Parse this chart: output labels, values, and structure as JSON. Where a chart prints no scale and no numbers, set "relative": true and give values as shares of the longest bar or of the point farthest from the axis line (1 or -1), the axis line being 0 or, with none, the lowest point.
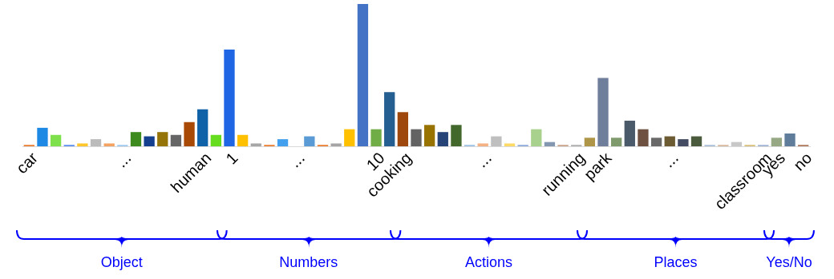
{
  "chart_data": {
    "type": "bar",
    "relative": true,
    "categories": [
      "car",
      null,
      null,
      null,
      null,
      null,
      null,
      "...",
      null,
      null,
      null,
      null,
      null,
      "human",
      null,
      "1",
      null,
      null,
      null,
      null,
      "...",
      null,
      null,
      null,
      null,
      null,
      "10",
      null,
      "cooking",
      null,
      null,
      null,
      null,
      null,
      "...",
      null,
      null,
      null,
      null,
      null,
      null,
      "running",
      null,
      "park",
      null,
      null,
      null,
      null,
      "...",
      null,
      null,
      null,
      null,
      null,
      null,
      "classroom",
      "yes",
      null,
      "no"
    ],
    "values": [
      0.01,
      0.13,
      0.08,
      0.01,
      0.02,
      0.05,
      0.02,
      0.01,
      0.1,
      0.07,
      0.1,
      0.08,
      0.17,
      0.26,
      0.08,
      0.68,
      0.08,
      0.02,
      0.01,
      0.05,
      0,
      0.07,
      0.01,
      0.02,
      0.12,
      1,
      0.12,
      0.38,
      0.24,
      0.12,
      0.15,
      0.1,
      0.15,
      0.01,
      0.02,
      0.07,
      0.02,
      0.01,
      0.12,
      0.03,
      0.01,
      0.01,
      0.06,
      0.48,
      0.06,
      0.18,
      0.12,
      0.06,
      0.07,
      0.05,
      0.07,
      0.01,
      0.01,
      0.03,
      0.01,
      0.01,
      0.06,
      0.09,
      0.01
    ],
    "colors": [
      "#ed7d31",
      "#1e88e5",
      "#7ee04a",
      "#5b8ff0",
      "#ffc72c",
      "#bbbbbb",
      "#f4a261",
      "#9ccaf0",
      "#3d8a1e",
      "#143f8f",
      "#957409",
      "#666666",
      "#a84a05",
      "#0f61a8",
      "#66dd1e",
      "#1f66e5",
      "#ffc000",
      "#a6a6a6",
      "#ed7d31",
      "#42a0ee",
      "#a5a5a5",
      "#5b9bd5",
      "#ed7d31",
      "#a5a5a5",
      "#ffc000",
      "#4472c4",
      "#70ad47",
      "#255e91",
      "#9e480e",
      "#636363",
      "#997300",
      "#264478",
      "#43682b",
      "#9dc3e6",
      "#f4b183",
      "#bfbfbf",
      "#ffd966",
      "#8faadc",
      "#a9d18e",
      "#8497b0",
      "#c9a38a",
      "#b0b0b0",
      "#ae9548",
      "#6f7f9b",
      "#7f9a6d",
      "#4a5a6b",
      "#6e5140",
      "#696969",
      "#6b5a32",
      "#444c63",
      "#4a5a3d",
      "#a9c0d8",
      "#d7b99e",
      "#c8c8c8",
      "#d9c07a",
      "#a2b4d4",
      "#96a884",
      "#5f7d9a",
      "#b0775a"
    ],
    "annotations": [
      "Object",
      "Numbers",
      "Actions",
      "Places",
      "Yes/No"
    ]
  }
}
